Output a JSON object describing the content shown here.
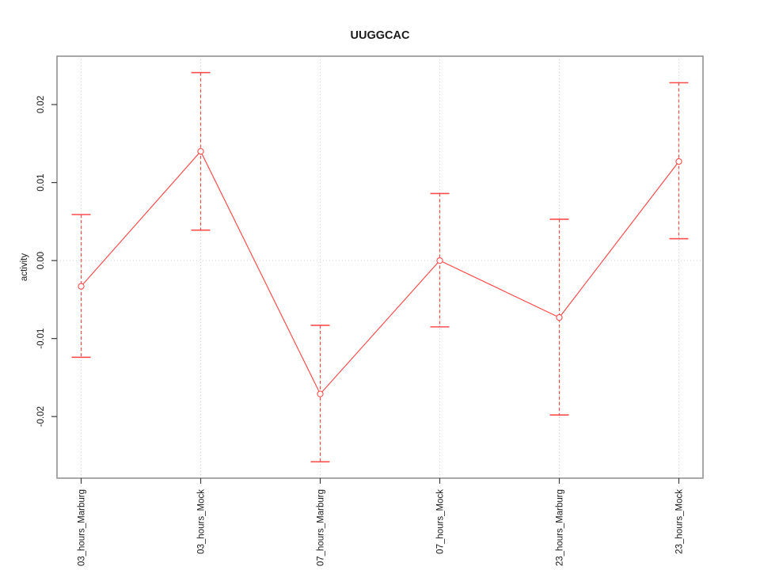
{
  "window": {
    "background": "#ffffff"
  },
  "chart_data": {
    "type": "line",
    "title": "UUGGCAC",
    "xlabel": "",
    "ylabel": "activity",
    "categories": [
      "03_hours_Marburg",
      "03_hours_Mock",
      "07_hours_Marburg",
      "07_hours_Mock",
      "23_hours_Marburg",
      "23_hours_Mock"
    ],
    "series": [
      {
        "name": "activity",
        "values": [
          -0.0033,
          0.014,
          -0.0171,
          0.0,
          -0.0073,
          0.0127
        ],
        "ci_lower": [
          -0.0124,
          0.0039,
          -0.0258,
          -0.0085,
          -0.0198,
          0.0028
        ],
        "ci_upper": [
          0.0059,
          0.0241,
          -0.0083,
          0.0086,
          0.0053,
          0.0228
        ]
      }
    ],
    "ylim": [
      -0.0279,
      0.0262
    ],
    "yticks": [
      -0.02,
      -0.01,
      0,
      0.01,
      0.02
    ],
    "ytick_labels": [
      "-0.02",
      "-0.01",
      "0.00",
      "0.01",
      "0.02"
    ],
    "grid": "dotted vertical line at each category; dotted horizontal line at y=0",
    "legend": "none",
    "marker": "open-circle",
    "error_bar_style": "dashed vertical stem with solid horizontal caps",
    "colors": {
      "series": "#ff4d4d",
      "grid": "#d2d2d2",
      "frame": "#8c8c8c",
      "tick": "#3c3c3c",
      "text": "#1a1a1a",
      "marker_fill": "#ffffff",
      "background": "#ffffff"
    }
  }
}
